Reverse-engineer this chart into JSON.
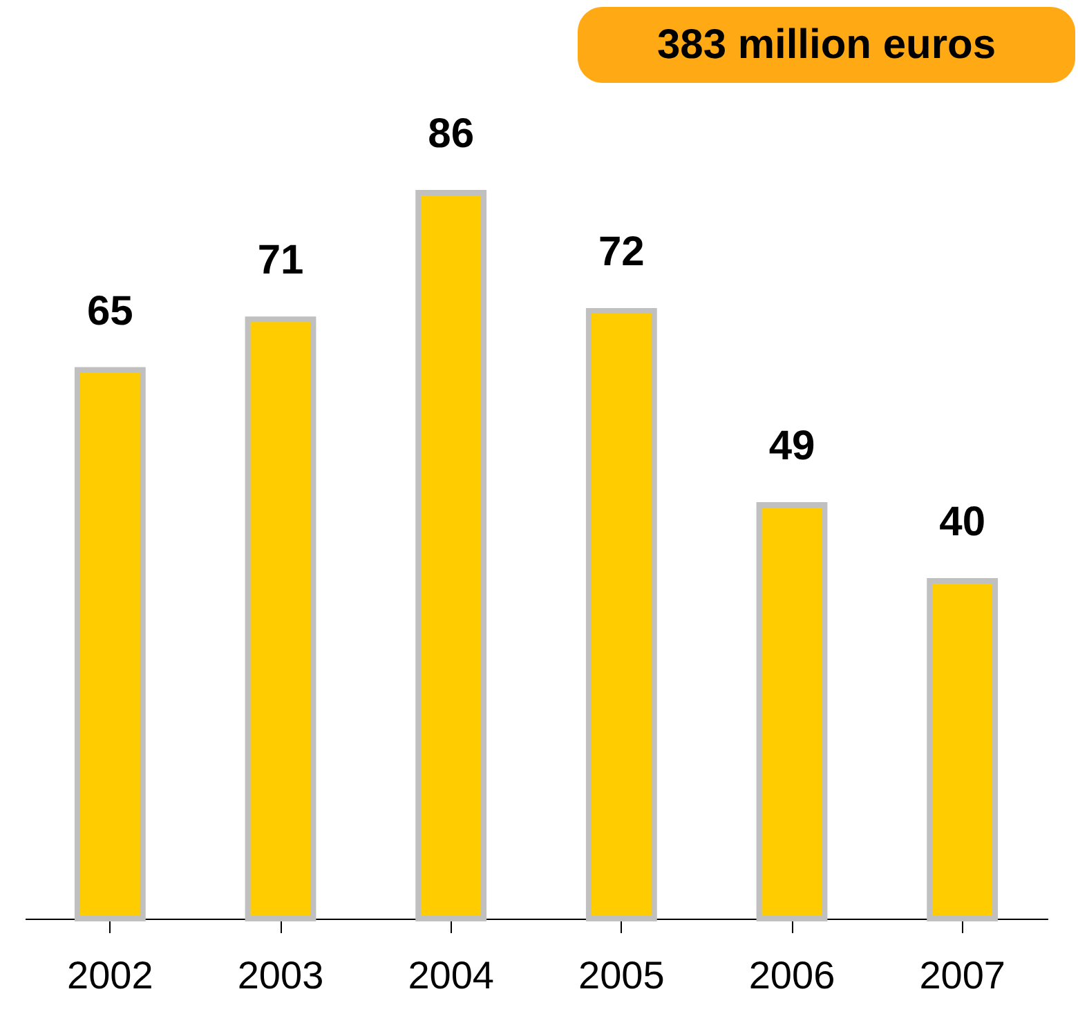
{
  "chart_data": {
    "type": "bar",
    "categories": [
      "2002",
      "2003",
      "2004",
      "2005",
      "2006",
      "2007"
    ],
    "values": [
      65,
      71,
      86,
      72,
      49,
      40
    ],
    "color": "#ffcc00",
    "data_labels": true,
    "annotations": [
      "383 million euros"
    ]
  }
}
